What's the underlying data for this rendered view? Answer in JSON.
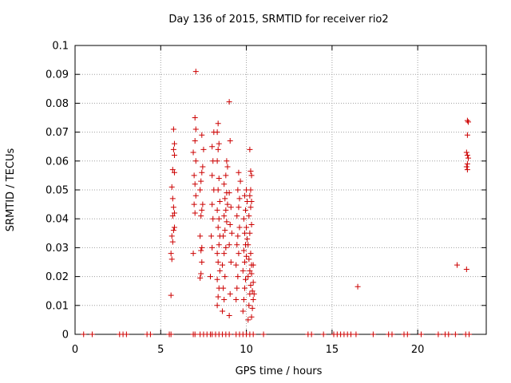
{
  "chart_data": {
    "type": "scatter",
    "title": "Day 136 of 2015, SRMTID for receiver rio2",
    "xlabel": "GPS time / hours",
    "ylabel": "SRMTID / TECUs",
    "xlim": [
      0,
      24
    ],
    "ylim": [
      0,
      0.1
    ],
    "xticks": [
      0,
      5,
      10,
      15,
      20
    ],
    "xtick_labels": [
      "0",
      "5",
      "10",
      "15",
      "20"
    ],
    "yticks": [
      0,
      0.01,
      0.02,
      0.03,
      0.04,
      0.05,
      0.06,
      0.07,
      0.08,
      0.09,
      0.1
    ],
    "ytick_labels": [
      "0",
      "0.01",
      "0.02",
      "0.03",
      "0.04",
      "0.05",
      "0.06",
      "0.07",
      "0.08",
      "0.09",
      "0.1"
    ],
    "grid": true,
    "marker": "+",
    "colors": {
      "series": "#cc0000",
      "grid": "#a0a0a0",
      "axis": "#000000"
    },
    "series": [
      {
        "name": "SRMTID",
        "points": [
          [
            0.5,
            0
          ],
          [
            1.0,
            0
          ],
          [
            2.6,
            0
          ],
          [
            2.8,
            0
          ],
          [
            3.0,
            0
          ],
          [
            4.2,
            0
          ],
          [
            4.4,
            0
          ],
          [
            5.5,
            0
          ],
          [
            5.6,
            0
          ],
          [
            6.9,
            0
          ],
          [
            7.0,
            0
          ],
          [
            7.3,
            0
          ],
          [
            7.5,
            0
          ],
          [
            7.7,
            0
          ],
          [
            7.9,
            0
          ],
          [
            8.0,
            0
          ],
          [
            8.2,
            0
          ],
          [
            8.4,
            0
          ],
          [
            8.6,
            0
          ],
          [
            8.8,
            0
          ],
          [
            9.0,
            0
          ],
          [
            9.4,
            0
          ],
          [
            9.6,
            0
          ],
          [
            9.8,
            0
          ],
          [
            10.0,
            0
          ],
          [
            10.2,
            0
          ],
          [
            10.4,
            0
          ],
          [
            11.0,
            0
          ],
          [
            13.6,
            0
          ],
          [
            13.8,
            0
          ],
          [
            14.5,
            0
          ],
          [
            15.1,
            0
          ],
          [
            15.3,
            0
          ],
          [
            15.5,
            0
          ],
          [
            15.7,
            0
          ],
          [
            15.9,
            0
          ],
          [
            16.1,
            0
          ],
          [
            16.4,
            0
          ],
          [
            17.4,
            0
          ],
          [
            18.3,
            0
          ],
          [
            18.5,
            0
          ],
          [
            19.2,
            0
          ],
          [
            19.4,
            0
          ],
          [
            20.2,
            0
          ],
          [
            21.2,
            0
          ],
          [
            21.6,
            0
          ],
          [
            21.8,
            0
          ],
          [
            22.2,
            0
          ],
          [
            22.8,
            0
          ],
          [
            23.0,
            0
          ],
          [
            5.6,
            0.0135
          ],
          [
            5.65,
            0.026
          ],
          [
            5.6,
            0.028
          ],
          [
            5.7,
            0.032
          ],
          [
            5.65,
            0.034
          ],
          [
            5.75,
            0.036
          ],
          [
            5.8,
            0.037
          ],
          [
            5.7,
            0.041
          ],
          [
            5.8,
            0.042
          ],
          [
            5.75,
            0.044
          ],
          [
            5.7,
            0.047
          ],
          [
            5.65,
            0.051
          ],
          [
            5.8,
            0.056
          ],
          [
            5.7,
            0.057
          ],
          [
            5.8,
            0.062
          ],
          [
            5.75,
            0.064
          ],
          [
            5.8,
            0.066
          ],
          [
            5.75,
            0.071
          ],
          [
            6.9,
            0.028
          ],
          [
            7.0,
            0.042
          ],
          [
            6.95,
            0.045
          ],
          [
            7.05,
            0.048
          ],
          [
            7.0,
            0.052
          ],
          [
            6.95,
            0.055
          ],
          [
            7.05,
            0.06
          ],
          [
            6.9,
            0.063
          ],
          [
            7.0,
            0.067
          ],
          [
            7.05,
            0.071
          ],
          [
            7.0,
            0.075
          ],
          [
            7.05,
            0.091
          ],
          [
            7.3,
            0.0195
          ],
          [
            7.35,
            0.021
          ],
          [
            7.4,
            0.025
          ],
          [
            7.35,
            0.029
          ],
          [
            7.4,
            0.03
          ],
          [
            7.3,
            0.034
          ],
          [
            7.35,
            0.041
          ],
          [
            7.4,
            0.043
          ],
          [
            7.45,
            0.045
          ],
          [
            7.3,
            0.05
          ],
          [
            7.35,
            0.053
          ],
          [
            7.4,
            0.056
          ],
          [
            7.45,
            0.058
          ],
          [
            7.5,
            0.064
          ],
          [
            7.4,
            0.069
          ],
          [
            7.9,
            0.02
          ],
          [
            8.0,
            0.03
          ],
          [
            7.95,
            0.034
          ],
          [
            8.05,
            0.04
          ],
          [
            8.0,
            0.045
          ],
          [
            8.1,
            0.05
          ],
          [
            8.0,
            0.055
          ],
          [
            8.05,
            0.06
          ],
          [
            8.0,
            0.065
          ],
          [
            8.1,
            0.07
          ],
          [
            8.3,
            0.01
          ],
          [
            8.35,
            0.013
          ],
          [
            8.4,
            0.016
          ],
          [
            8.3,
            0.019
          ],
          [
            8.45,
            0.022
          ],
          [
            8.35,
            0.025
          ],
          [
            8.3,
            0.028
          ],
          [
            8.4,
            0.031
          ],
          [
            8.45,
            0.034
          ],
          [
            8.35,
            0.037
          ],
          [
            8.4,
            0.04
          ],
          [
            8.3,
            0.043
          ],
          [
            8.45,
            0.046
          ],
          [
            8.35,
            0.05
          ],
          [
            8.4,
            0.054
          ],
          [
            8.3,
            0.06
          ],
          [
            8.35,
            0.064
          ],
          [
            8.4,
            0.066
          ],
          [
            8.3,
            0.07
          ],
          [
            8.35,
            0.073
          ],
          [
            8.6,
            0.008
          ],
          [
            8.7,
            0.012
          ],
          [
            8.65,
            0.016
          ],
          [
            8.75,
            0.02
          ],
          [
            8.6,
            0.024
          ],
          [
            8.7,
            0.028
          ],
          [
            8.8,
            0.03
          ],
          [
            8.65,
            0.034
          ],
          [
            8.75,
            0.036
          ],
          [
            8.85,
            0.039
          ],
          [
            8.7,
            0.041
          ],
          [
            8.8,
            0.043
          ],
          [
            8.9,
            0.045
          ],
          [
            8.75,
            0.047
          ],
          [
            8.85,
            0.049
          ],
          [
            8.7,
            0.052
          ],
          [
            8.8,
            0.055
          ],
          [
            8.9,
            0.058
          ],
          [
            8.85,
            0.06
          ],
          [
            9.0,
            0.0065
          ],
          [
            9.05,
            0.014
          ],
          [
            9.1,
            0.025
          ],
          [
            9.0,
            0.031
          ],
          [
            9.15,
            0.035
          ],
          [
            9.05,
            0.038
          ],
          [
            9.1,
            0.044
          ],
          [
            9.0,
            0.049
          ],
          [
            9.05,
            0.067
          ],
          [
            9.0,
            0.0805
          ],
          [
            9.4,
            0.012
          ],
          [
            9.45,
            0.016
          ],
          [
            9.5,
            0.02
          ],
          [
            9.4,
            0.024
          ],
          [
            9.55,
            0.028
          ],
          [
            9.45,
            0.031
          ],
          [
            9.5,
            0.034
          ],
          [
            9.6,
            0.037
          ],
          [
            9.45,
            0.041
          ],
          [
            9.55,
            0.044
          ],
          [
            9.6,
            0.047
          ],
          [
            9.5,
            0.05
          ],
          [
            9.65,
            0.053
          ],
          [
            9.55,
            0.056
          ],
          [
            9.8,
            0.008
          ],
          [
            9.85,
            0.012
          ],
          [
            9.9,
            0.016
          ],
          [
            9.95,
            0.019
          ],
          [
            9.8,
            0.022
          ],
          [
            9.9,
            0.025
          ],
          [
            10.0,
            0.027
          ],
          [
            9.85,
            0.029
          ],
          [
            9.95,
            0.031
          ],
          [
            10.05,
            0.033
          ],
          [
            9.9,
            0.035
          ],
          [
            10.0,
            0.037
          ],
          [
            9.85,
            0.04
          ],
          [
            9.95,
            0.043
          ],
          [
            10.05,
            0.046
          ],
          [
            9.9,
            0.048
          ],
          [
            10.0,
            0.05
          ],
          [
            10.1,
            0.005
          ],
          [
            10.15,
            0.01
          ],
          [
            10.2,
            0.014
          ],
          [
            10.25,
            0.017
          ],
          [
            10.1,
            0.02
          ],
          [
            10.2,
            0.022
          ],
          [
            10.3,
            0.024
          ],
          [
            10.15,
            0.026
          ],
          [
            10.25,
            0.028
          ],
          [
            10.1,
            0.031
          ],
          [
            10.2,
            0.035
          ],
          [
            10.3,
            0.038
          ],
          [
            10.15,
            0.041
          ],
          [
            10.25,
            0.044
          ],
          [
            10.3,
            0.046
          ],
          [
            10.2,
            0.048
          ],
          [
            10.25,
            0.05
          ],
          [
            10.3,
            0.055
          ],
          [
            10.25,
            0.0565
          ],
          [
            10.2,
            0.064
          ],
          [
            10.3,
            0.006
          ],
          [
            10.35,
            0.009
          ],
          [
            10.4,
            0.012
          ],
          [
            10.45,
            0.014
          ],
          [
            10.35,
            0.015
          ],
          [
            10.4,
            0.018
          ],
          [
            10.3,
            0.021
          ],
          [
            10.4,
            0.024
          ],
          [
            16.5,
            0.0165
          ],
          [
            22.3,
            0.024
          ],
          [
            22.85,
            0.0225
          ],
          [
            22.9,
            0.057
          ],
          [
            22.85,
            0.058
          ],
          [
            22.9,
            0.059
          ],
          [
            22.95,
            0.061
          ],
          [
            22.9,
            0.062
          ],
          [
            22.85,
            0.063
          ],
          [
            22.9,
            0.069
          ],
          [
            22.95,
            0.0735
          ],
          [
            22.9,
            0.074
          ]
        ]
      }
    ]
  }
}
